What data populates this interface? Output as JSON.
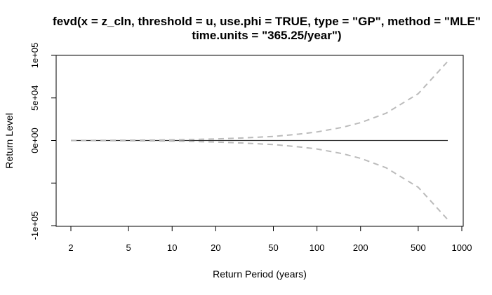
{
  "chart_data": {
    "type": "line",
    "title": {
      "line1": "fevd(x = z_cln, threshold = u, use.phi = TRUE, type = \"GP\", method = \"MLE\"",
      "line2": "time.units = \"365.25/year\")"
    },
    "xlabel": "Return Period (years)",
    "ylabel": "Return Level",
    "x_scale": "log",
    "xlim": [
      2,
      1000
    ],
    "ylim": [
      -100000,
      100000
    ],
    "grid": false,
    "x_ticks": [
      {
        "value": 2,
        "label": "2"
      },
      {
        "value": 5,
        "label": "5"
      },
      {
        "value": 10,
        "label": "10"
      },
      {
        "value": 20,
        "label": "20"
      },
      {
        "value": 50,
        "label": "50"
      },
      {
        "value": 100,
        "label": "100"
      },
      {
        "value": 200,
        "label": "200"
      },
      {
        "value": 500,
        "label": "500"
      },
      {
        "value": 1000,
        "label": "1000"
      }
    ],
    "y_ticks": [
      {
        "value": -100000,
        "label": "-1e+05"
      },
      {
        "value": -50000,
        "label": ""
      },
      {
        "value": 0,
        "label": "0e+00"
      },
      {
        "value": 50000,
        "label": "5e+04"
      },
      {
        "value": 100000,
        "label": "1e+05"
      }
    ],
    "x": [
      2,
      3,
      5,
      8,
      10,
      15,
      20,
      30,
      50,
      75,
      100,
      150,
      200,
      300,
      500,
      800
    ],
    "series": [
      {
        "role": "estimate",
        "style": "solid",
        "color": "#333333",
        "values": [
          0,
          0,
          0,
          0,
          0,
          0,
          0,
          0,
          0,
          0,
          0,
          0,
          0,
          0,
          0,
          0
        ]
      },
      {
        "role": "upper",
        "style": "dashed",
        "color": "#bbbbbb",
        "values": [
          80,
          150,
          320,
          600,
          800,
          1300,
          1800,
          2900,
          4800,
          7500,
          10000,
          15500,
          21000,
          32000,
          55000,
          93000
        ]
      },
      {
        "role": "lower",
        "style": "dashed",
        "color": "#bbbbbb",
        "values": [
          -80,
          -150,
          -320,
          -600,
          -800,
          -1300,
          -1800,
          -2900,
          -4800,
          -7500,
          -10000,
          -15500,
          -21000,
          -32000,
          -55000,
          -93000
        ]
      }
    ]
  }
}
